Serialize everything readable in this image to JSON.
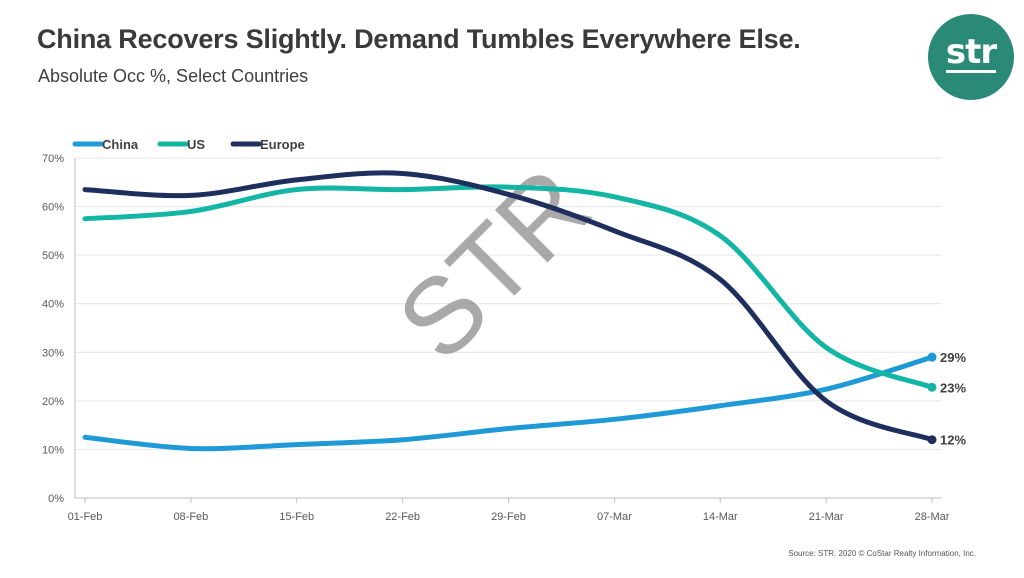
{
  "title": "China Recovers Slightly. Demand Tumbles Everywhere Else.",
  "subtitle": "Absolute Occ %, Select Countries",
  "logo_text": "str",
  "watermark": "STR",
  "source": "Source: STR. 2020 © CoStar Realty Information, Inc.",
  "colors": {
    "China": "#1f9ad6",
    "US": "#13b5a5",
    "Europe": "#1e2f5e",
    "logo": "#2a8a77"
  },
  "chart_data": {
    "type": "line",
    "title": "China Recovers Slightly. Demand Tumbles Everywhere Else.",
    "subtitle": "Absolute Occ %, Select Countries",
    "xlabel": "",
    "ylabel": "",
    "categories": [
      "01-Feb",
      "08-Feb",
      "15-Feb",
      "22-Feb",
      "29-Feb",
      "07-Mar",
      "14-Mar",
      "21-Mar",
      "28-Mar"
    ],
    "y_ticks": [
      "0%",
      "10%",
      "20%",
      "30%",
      "40%",
      "50%",
      "60%",
      "70%"
    ],
    "ylim": [
      0,
      70
    ],
    "y_unit": "%",
    "grid": true,
    "legend_position": "top-left",
    "series": [
      {
        "name": "China",
        "values": [
          12.5,
          10.2,
          11.0,
          12.0,
          14.3,
          16.2,
          19.0,
          22.4,
          29.0
        ],
        "end_label": "29%"
      },
      {
        "name": "US",
        "values": [
          57.5,
          59.0,
          63.5,
          63.5,
          64.0,
          62.0,
          54.0,
          31.0,
          22.8
        ],
        "end_label": "23%"
      },
      {
        "name": "Europe",
        "values": [
          63.5,
          62.3,
          65.5,
          66.8,
          62.5,
          55.0,
          45.0,
          20.0,
          12.0
        ],
        "end_label": "12%"
      }
    ]
  }
}
